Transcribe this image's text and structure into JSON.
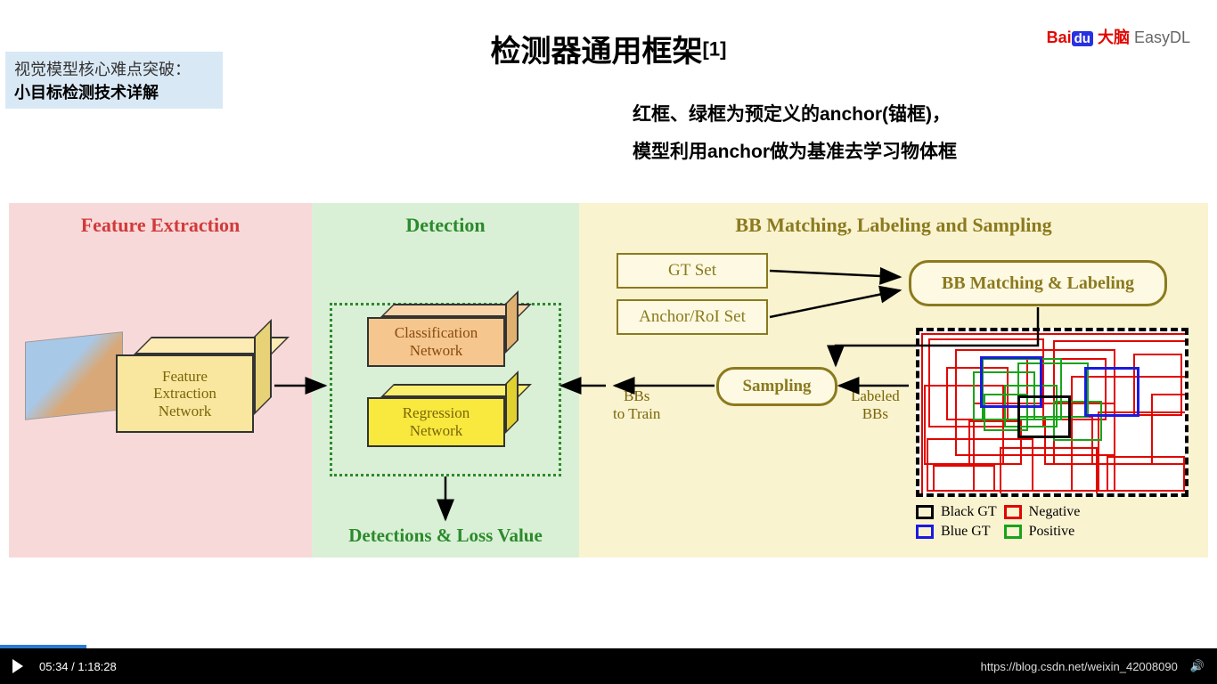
{
  "corner": {
    "line1": "视觉模型核心难点突破：",
    "line2": "小目标检测技术详解"
  },
  "title": {
    "main": "检测器通用框架",
    "ref": "[1]"
  },
  "logo": {
    "bai": "Bai",
    "du": "du",
    "brain": "大脑",
    "easydl": " EasyDL"
  },
  "subtitle": {
    "line1": "红框、绿框为预定义的anchor(锚框)，",
    "line2": "模型利用anchor做为基准去学习物体框"
  },
  "panels": {
    "fe": {
      "header": "Feature Extraction",
      "cube": "Feature\nExtraction\nNetwork",
      "bg": "#f8d9d9",
      "hcolor": "#d13a3a"
    },
    "det": {
      "header": "Detection",
      "cls": "Classification\nNetwork",
      "reg": "Regression\nNetwork",
      "output": "Detections & Loss Value",
      "bg": "#d9f0d6",
      "hcolor": "#2c8a2c"
    },
    "bb": {
      "header": "BB Matching, Labeling and Sampling",
      "gt": "GT Set",
      "anchor": "Anchor/RoI Set",
      "matching": "BB Matching & Labeling",
      "sampling": "Sampling",
      "bbs_train": "BBs\nto Train",
      "labeled": "Labeled\nBBs",
      "bg": "#f9f3d0",
      "hcolor": "#8b7a1e"
    }
  },
  "legend": {
    "black": "Black GT",
    "blue": "Blue GT",
    "neg": "Negative",
    "pos": "Positive",
    "black_c": "#000000",
    "blue_c": "#1a1ae1",
    "neg_c": "#e10601",
    "pos_c": "#1aa31a"
  },
  "vis_boxes": {
    "red": [
      [
        2,
        2,
        300,
        184
      ],
      [
        10,
        8,
        130,
        100
      ],
      [
        40,
        20,
        180,
        120
      ],
      [
        150,
        10,
        150,
        140
      ],
      [
        5,
        60,
        90,
        90
      ],
      [
        170,
        50,
        130,
        130
      ],
      [
        60,
        80,
        160,
        100
      ],
      [
        200,
        90,
        100,
        90
      ],
      [
        8,
        120,
        120,
        60
      ],
      [
        90,
        130,
        110,
        55
      ],
      [
        210,
        140,
        88,
        40
      ],
      [
        30,
        40,
        70,
        60
      ],
      [
        120,
        30,
        90,
        70
      ],
      [
        240,
        25,
        55,
        70
      ],
      [
        55,
        100,
        60,
        50
      ],
      [
        140,
        95,
        55,
        55
      ],
      [
        15,
        150,
        70,
        30
      ],
      [
        260,
        70,
        40,
        80
      ]
    ],
    "green": [
      [
        70,
        30,
        90,
        70
      ],
      [
        110,
        35,
        80,
        62
      ],
      [
        60,
        45,
        70,
        55
      ],
      [
        150,
        78,
        55,
        45
      ],
      [
        95,
        60,
        60,
        48
      ],
      [
        72,
        70,
        50,
        42
      ]
    ],
    "blue": [
      [
        68,
        28,
        70,
        58
      ],
      [
        185,
        40,
        62,
        56
      ]
    ],
    "black": [
      [
        110,
        72,
        60,
        48
      ]
    ]
  },
  "arrows": {
    "stroke": "#000000",
    "width": 2.5
  },
  "video": {
    "time": "05:34 / 1:18:28",
    "watermark": "https://blog.csdn.net/weixin_42008090",
    "progress_pct": 7.1
  }
}
